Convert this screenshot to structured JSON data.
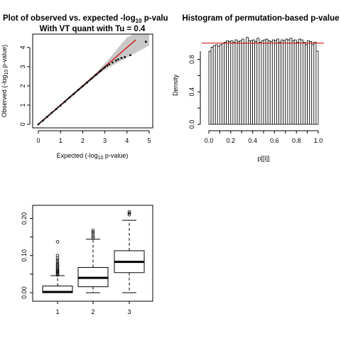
{
  "chart_data": [
    {
      "type": "scatter",
      "title_line1": "Plot of observed vs. expected -log",
      "title_sub": "10",
      "title_suffix": " p-valu",
      "title_line2": "With VT quant with Tu = 0.4",
      "xlabel_prefix": "Expected (-log",
      "xlabel_sub": "10",
      "xlabel_suffix": " p-value)",
      "ylabel_prefix": "Observed (-log",
      "ylabel_sub": "10",
      "ylabel_suffix": " p-value)",
      "xlim": [
        0,
        5
      ],
      "ylim": [
        0,
        4.4
      ],
      "x_ticks": [
        "0",
        "1",
        "2",
        "3",
        "4",
        "5"
      ],
      "y_ticks": [
        "0",
        "1",
        "2",
        "3",
        "4"
      ],
      "series": [
        {
          "x": [
            0.0,
            0.2,
            0.4,
            0.6,
            0.8,
            1.0,
            1.2,
            1.4,
            1.6,
            1.8,
            2.0,
            2.2,
            2.4,
            2.6,
            2.8,
            3.0,
            3.1,
            3.2,
            3.35,
            3.5,
            3.6,
            3.75,
            3.9,
            4.15
          ],
          "y": [
            0.0,
            0.19,
            0.39,
            0.6,
            0.79,
            0.98,
            1.18,
            1.39,
            1.58,
            1.79,
            1.98,
            2.17,
            2.38,
            2.58,
            2.78,
            2.97,
            3.05,
            3.12,
            3.22,
            3.32,
            3.38,
            3.45,
            3.5,
            3.6
          ]
        }
      ],
      "reference_line": "y = x",
      "confidence_band": "grey"
    },
    {
      "type": "bar",
      "title": "Histogram of permutation-based p-value",
      "xlabel": "p[[i]]",
      "ylabel": "Density",
      "xlim": [
        0,
        1
      ],
      "ylim": [
        0,
        1.05
      ],
      "x_ticks": [
        "0.0",
        "0.2",
        "0.4",
        "0.6",
        "0.8",
        "1.0"
      ],
      "y_ticks": [
        "0.0",
        "0.4",
        "0.8"
      ],
      "bin_width": 0.02,
      "values": [
        0.9,
        0.95,
        0.97,
        0.98,
        0.96,
        0.98,
        1.0,
        1.01,
        1.03,
        1.02,
        1.03,
        1.01,
        1.04,
        1.02,
        1.03,
        1.05,
        1.0,
        1.07,
        1.03,
        1.03,
        1.04,
        1.02,
        1.06,
        1.01,
        1.03,
        1.04,
        1.05,
        1.03,
        1.02,
        1.04,
        1.03,
        1.05,
        1.01,
        1.04,
        1.03,
        1.05,
        1.04,
        1.06,
        1.03,
        1.04,
        1.01,
        1.05,
        1.04,
        1.01,
        0.98,
        1.03,
        1.02,
        0.98,
        1.01,
        0.9
      ],
      "reference_line_y": 1.0,
      "reference_color": "#cc0000"
    },
    {
      "type": "boxplot",
      "categories": [
        "1",
        "2",
        "3"
      ],
      "ylim": [
        0,
        0.22
      ],
      "y_ticks": [
        "0.00",
        "0.10",
        "0.20"
      ],
      "boxes": [
        {
          "q1": 0.0,
          "median": 0.002,
          "q3": 0.018,
          "wlo": 0.0,
          "whi": 0.046,
          "outliers": [
            0.048,
            0.05,
            0.052,
            0.055,
            0.058,
            0.06,
            0.063,
            0.066,
            0.07,
            0.074,
            0.078,
            0.083,
            0.088,
            0.093,
            0.1,
            0.137
          ]
        },
        {
          "q1": 0.016,
          "median": 0.04,
          "q3": 0.068,
          "wlo": 0.0,
          "whi": 0.144,
          "outliers": [
            0.148,
            0.152,
            0.158,
            0.163,
            0.168
          ]
        },
        {
          "q1": 0.054,
          "median": 0.083,
          "q3": 0.113,
          "wlo": 0.0,
          "whi": 0.195,
          "outliers": [
            0.21,
            0.214,
            0.218
          ]
        }
      ]
    }
  ]
}
